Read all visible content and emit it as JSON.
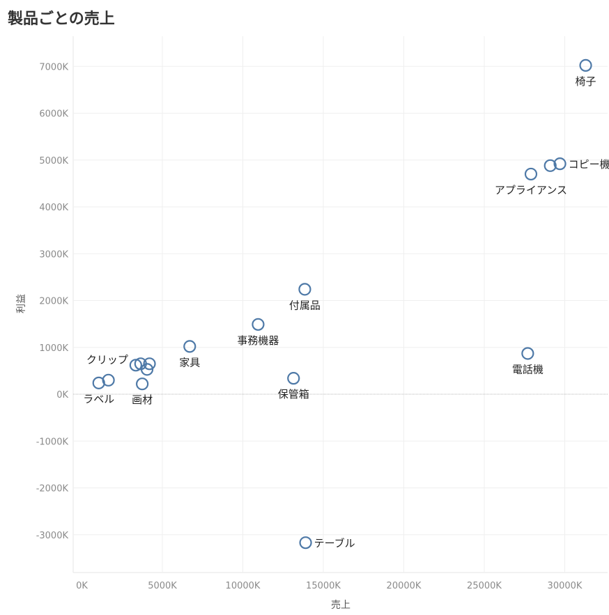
{
  "title": "製品ごとの売上",
  "chart_data": {
    "type": "scatter",
    "title": "製品ごとの売上",
    "xlabel": "売上",
    "ylabel": "利益",
    "xlim": [
      -500,
      33000
    ],
    "ylim": [
      -3800,
      7600
    ],
    "x_ticks": [
      0,
      5000,
      10000,
      15000,
      20000,
      25000,
      30000
    ],
    "x_tick_labels": [
      "0K",
      "5000K",
      "10000K",
      "15000K",
      "20000K",
      "25000K",
      "30000K"
    ],
    "y_ticks": [
      7000,
      6000,
      5000,
      4000,
      3000,
      2000,
      1000,
      0,
      -1000,
      -2000,
      -3000
    ],
    "y_tick_labels": [
      "7000K",
      "6000K",
      "5000K",
      "4000K",
      "3000K",
      "2000K",
      "1000K",
      "0K",
      "-1000K",
      "-2000K",
      "-3000K"
    ],
    "grid": true,
    "zero_line": true,
    "marker_color": "#4e79a7",
    "points": [
      {
        "label": "椅子",
        "x": 31300,
        "y": 7020,
        "label_pos": "below"
      },
      {
        "label": "コピー機",
        "x": 29700,
        "y": 4920,
        "label_pos": "right"
      },
      {
        "label": "",
        "x": 29100,
        "y": 4880
      },
      {
        "label": "アプライアンス",
        "x": 27900,
        "y": 4700,
        "label_pos": "below"
      },
      {
        "label": "付属品",
        "x": 13850,
        "y": 2240,
        "label_pos": "below"
      },
      {
        "label": "事務機器",
        "x": 10950,
        "y": 1490,
        "label_pos": "below"
      },
      {
        "label": "家具",
        "x": 6700,
        "y": 1020,
        "label_pos": "below"
      },
      {
        "label": "電話機",
        "x": 27700,
        "y": 870,
        "label_pos": "below"
      },
      {
        "label": "保管箱",
        "x": 13150,
        "y": 340,
        "label_pos": "below"
      },
      {
        "label": "クリップ",
        "x": 3350,
        "y": 620,
        "label_pos": "left-top"
      },
      {
        "label": "",
        "x": 3650,
        "y": 650
      },
      {
        "label": "",
        "x": 4200,
        "y": 650
      },
      {
        "label": "",
        "x": 4050,
        "y": 530
      },
      {
        "label": "画材",
        "x": 3750,
        "y": 220,
        "label_pos": "below"
      },
      {
        "label": "",
        "x": 1650,
        "y": 300
      },
      {
        "label": "ラベル",
        "x": 1050,
        "y": 240,
        "label_pos": "below"
      },
      {
        "label": "テーブル",
        "x": 13900,
        "y": -3170,
        "label_pos": "right"
      }
    ]
  }
}
